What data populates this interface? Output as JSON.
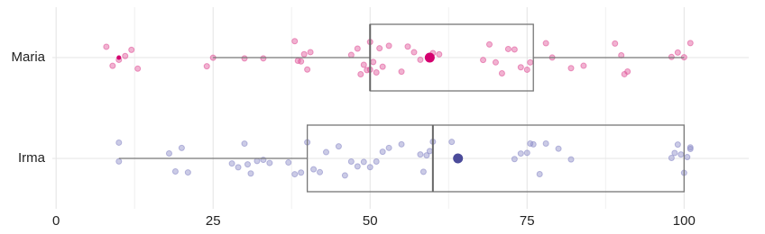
{
  "chart_data": {
    "type": "box",
    "xlim": [
      -0.6,
      110.3
    ],
    "xticks": [
      0,
      25,
      50,
      75,
      100
    ],
    "xminor": [
      12.5,
      37.5,
      62.5,
      87.5
    ],
    "grid": true,
    "series": [
      {
        "name": "Maria",
        "color": "#e0559a",
        "mean_color": "#d4006f",
        "whisker_low": 25,
        "q1": 50,
        "median": 50,
        "q3": 76,
        "whisker_high": 100,
        "mean": 59.5,
        "outliers": [
          10
        ],
        "points": [
          8,
          9,
          10,
          11,
          12,
          13,
          24,
          25,
          30,
          33,
          38,
          38.5,
          39,
          39.5,
          40,
          40.5,
          47,
          48,
          48.5,
          49,
          49.5,
          50,
          50,
          50.5,
          51,
          51.5,
          52,
          53,
          55,
          56,
          57,
          58,
          60,
          61,
          68,
          69,
          70,
          71,
          72,
          73,
          74,
          75,
          75.5,
          78,
          79,
          82,
          84,
          89,
          90,
          90.5,
          91,
          98,
          99,
          100,
          101
        ]
      },
      {
        "name": "Irma",
        "color": "#8c8cc8",
        "mean_color": "#4b4b9a",
        "whisker_low": 10,
        "q1": 40,
        "median": 60,
        "q3": 100,
        "whisker_high": 100,
        "mean": 64,
        "outliers": [],
        "points": [
          10,
          10,
          18,
          19,
          20,
          21,
          28,
          29,
          30,
          30.5,
          31,
          32,
          33,
          34,
          37,
          38,
          39,
          40,
          41,
          42,
          43,
          45,
          46,
          47,
          48,
          49,
          50,
          51,
          52,
          53,
          55,
          58,
          58.5,
          59,
          59.5,
          60,
          63,
          64,
          73,
          74,
          75,
          75.5,
          76,
          77,
          78,
          80,
          82,
          98,
          98.5,
          99,
          99.5,
          100,
          100.5,
          101,
          101
        ]
      }
    ]
  }
}
